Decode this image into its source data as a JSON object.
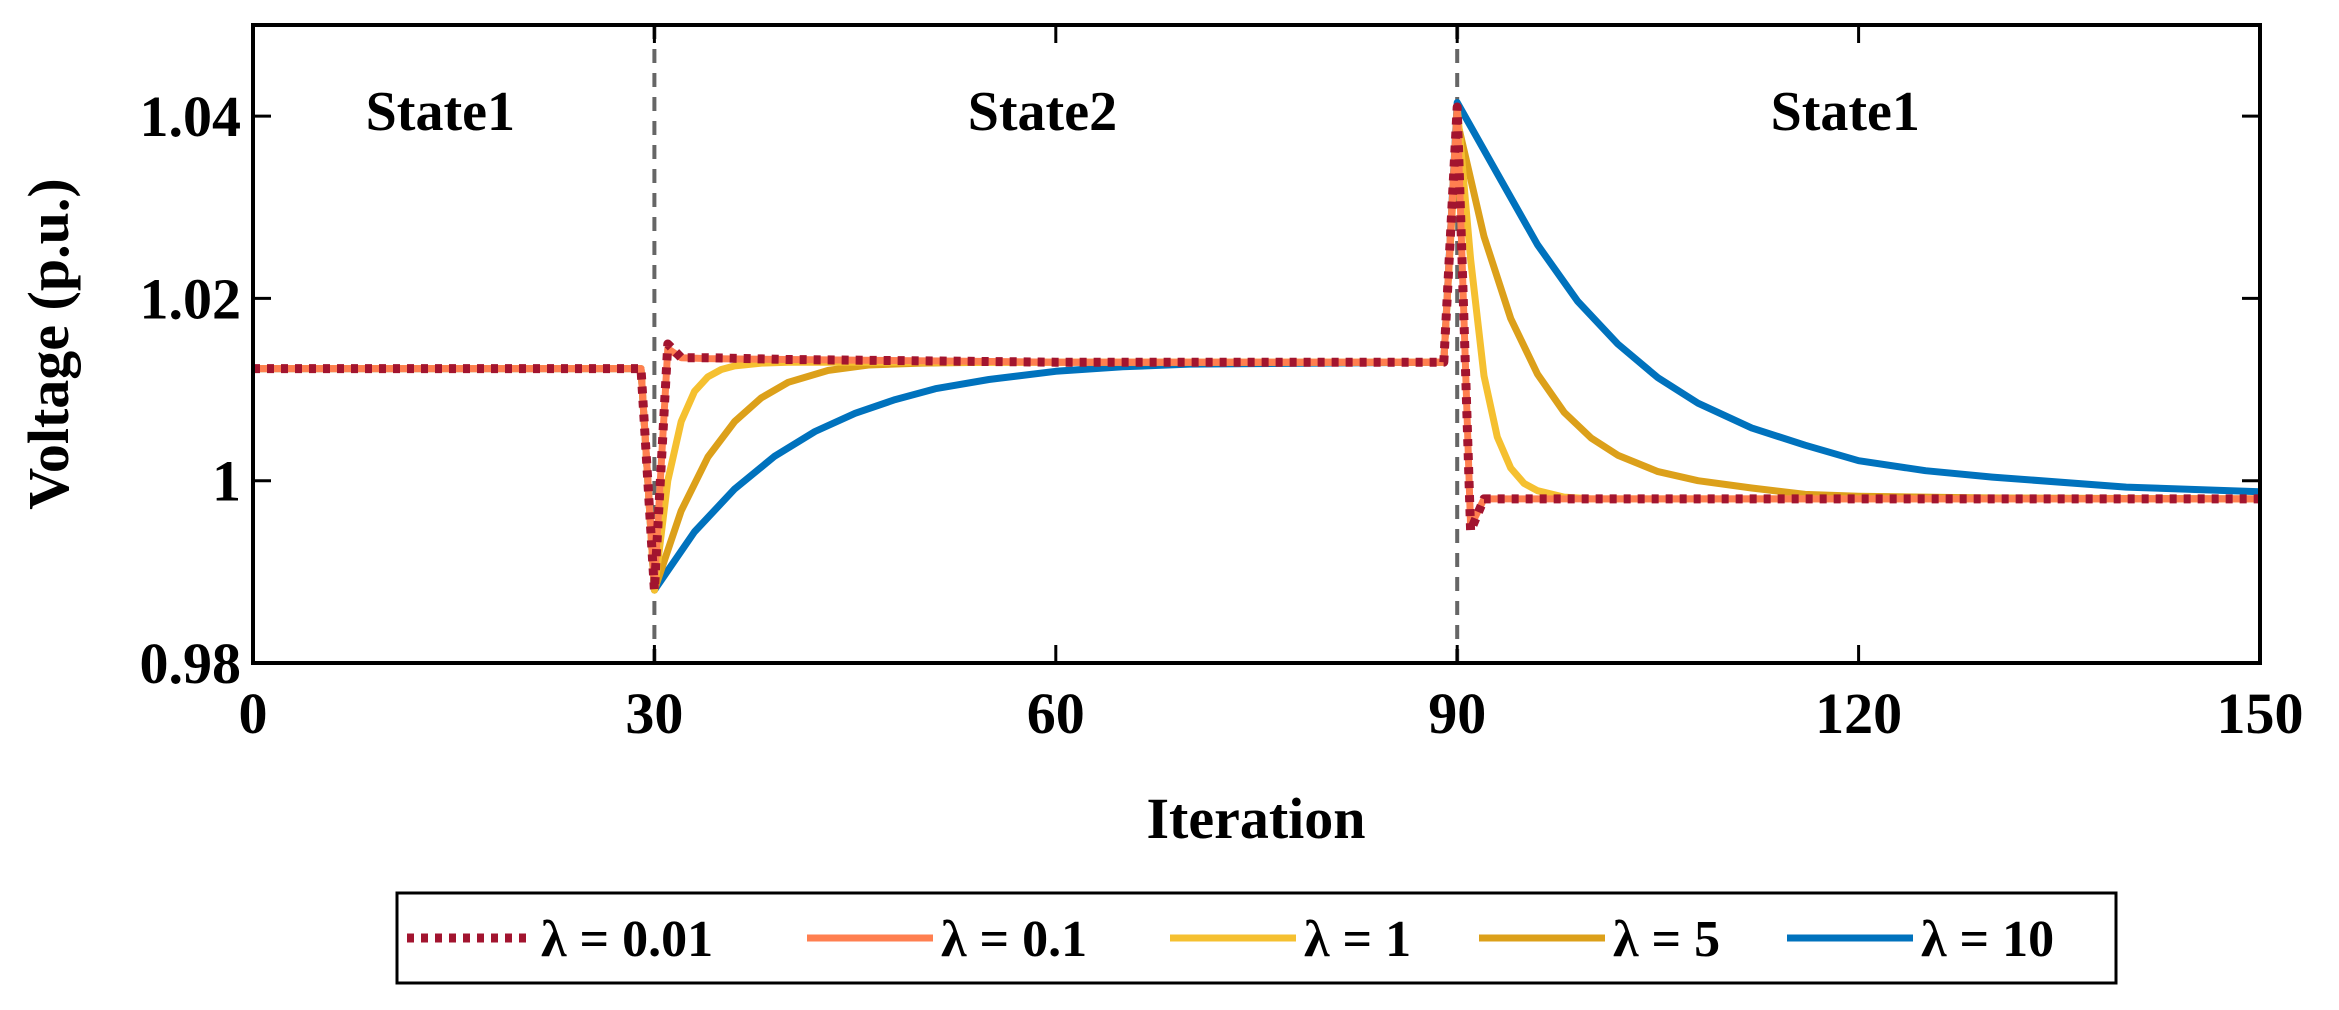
{
  "chart_data": {
    "type": "line",
    "xlabel": "Iteration",
    "ylabel": "Voltage (p.u.)",
    "xlim": [
      0,
      150
    ],
    "ylim": [
      0.98,
      1.05
    ],
    "xticks": [
      0,
      30,
      60,
      90,
      120,
      150
    ],
    "xtick_labels": [
      "0",
      "30",
      "60",
      "90",
      "120",
      "150"
    ],
    "yticks": [
      0.98,
      1.0,
      1.02,
      1.04
    ],
    "ytick_labels": [
      "0.98",
      "1",
      "1.02",
      "1.04"
    ],
    "grid": false,
    "legend_position": "bottom",
    "vlines": [
      30,
      90
    ],
    "annotations": [
      {
        "text": "State1",
        "x": 14,
        "y": 1.0385
      },
      {
        "text": "State2",
        "x": 59,
        "y": 1.0385
      },
      {
        "text": "State1",
        "x": 119,
        "y": 1.0385
      }
    ],
    "series": [
      {
        "name": "λ = 0.01",
        "color": "#a2142f",
        "style": "dotted",
        "x": [
          0,
          29,
          30,
          31,
          32,
          34,
          40,
          60,
          89,
          90,
          91,
          92,
          94,
          100,
          120,
          150
        ],
        "y": [
          1.0123,
          1.0123,
          0.988,
          1.015,
          1.0135,
          1.0135,
          1.0133,
          1.013,
          1.013,
          1.041,
          0.9945,
          0.998,
          0.998,
          0.998,
          0.998,
          0.998
        ]
      },
      {
        "name": "λ = 0.1",
        "color": "#ff7f50",
        "style": "solid",
        "x": [
          0,
          29,
          30,
          31,
          32,
          34,
          40,
          60,
          89,
          90,
          91,
          92,
          94,
          100,
          120,
          150
        ],
        "y": [
          1.0123,
          1.0123,
          0.9885,
          1.0145,
          1.0135,
          1.0134,
          1.0133,
          1.013,
          1.013,
          1.041,
          0.995,
          0.998,
          0.998,
          0.998,
          0.998,
          0.998
        ]
      },
      {
        "name": "λ = 1",
        "color": "#f5c030",
        "style": "solid",
        "x": [
          0,
          29,
          30,
          31,
          32,
          33,
          34,
          35,
          36,
          38,
          40,
          45,
          50,
          60,
          89,
          90,
          91,
          92,
          93,
          94,
          95,
          96,
          98,
          100,
          110,
          150
        ],
        "y": [
          1.0123,
          1.0123,
          0.988,
          1.0,
          1.0065,
          1.0098,
          1.0114,
          1.0122,
          1.0126,
          1.0129,
          1.013,
          1.013,
          1.013,
          1.013,
          1.013,
          1.041,
          1.0243,
          1.0115,
          1.0048,
          1.0014,
          0.9997,
          0.9989,
          0.9982,
          0.998,
          0.998,
          0.998
        ]
      },
      {
        "name": "λ = 5",
        "color": "#dca01a",
        "style": "solid",
        "x": [
          0,
          29,
          30,
          32,
          34,
          36,
          38,
          40,
          43,
          46,
          50,
          55,
          60,
          89,
          90,
          92,
          94,
          96,
          98,
          100,
          102,
          105,
          108,
          112,
          116,
          120,
          130,
          150
        ],
        "y": [
          1.0123,
          1.0123,
          0.988,
          0.9967,
          1.0026,
          1.0065,
          1.0091,
          1.0108,
          1.0121,
          1.0127,
          1.0129,
          1.013,
          1.013,
          1.013,
          1.0395,
          1.0268,
          1.0178,
          1.0117,
          1.0075,
          1.0047,
          1.0028,
          1.001,
          1.0,
          0.9992,
          0.9985,
          0.9983,
          0.9981,
          0.998
        ]
      },
      {
        "name": "λ = 10",
        "color": "#0072bd",
        "style": "solid",
        "x": [
          0,
          29,
          30,
          33,
          36,
          39,
          42,
          45,
          48,
          51,
          55,
          60,
          65,
          70,
          89,
          90,
          93,
          96,
          99,
          102,
          105,
          108,
          112,
          116,
          120,
          125,
          130,
          140,
          150
        ],
        "y": [
          1.0123,
          1.0123,
          0.988,
          0.9944,
          0.9991,
          1.0027,
          1.0054,
          1.0074,
          1.0089,
          1.0101,
          1.0111,
          1.012,
          1.0125,
          1.0128,
          1.013,
          1.0415,
          1.0337,
          1.0259,
          1.0197,
          1.015,
          1.0113,
          1.0085,
          1.0058,
          1.0039,
          1.0022,
          1.0011,
          1.0004,
          0.9993,
          0.9988
        ]
      }
    ]
  }
}
